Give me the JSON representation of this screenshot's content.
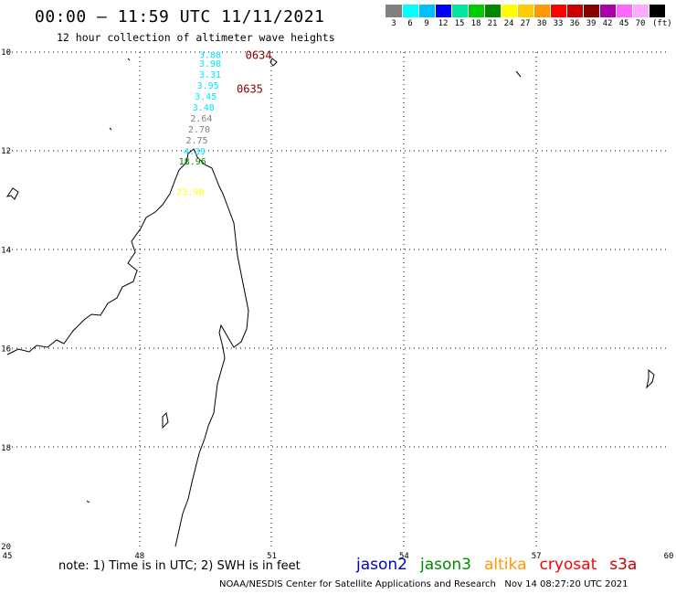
{
  "header": {
    "title": "00:00 — 11:59 UTC 11/11/2021",
    "subtitle": "12 hour collection of altimeter wave heights"
  },
  "colorbar": {
    "colors": [
      "#808080",
      "#00ffff",
      "#00bfff",
      "#0000ff",
      "#00e5a0",
      "#00cc00",
      "#008800",
      "#ffff00",
      "#ffcc00",
      "#ff9900",
      "#ff0000",
      "#cc0000",
      "#880000",
      "#aa00aa",
      "#ff66ff",
      "#ffaaff",
      "#000000"
    ],
    "ticks": [
      "3",
      "6",
      "9",
      "12",
      "15",
      "18",
      "21",
      "24",
      "27",
      "30",
      "33",
      "36",
      "39",
      "42",
      "45",
      "70"
    ],
    "unit": "(ft)"
  },
  "map": {
    "lon_ticks": [
      "45",
      "48",
      "51",
      "54",
      "57",
      "60"
    ],
    "lat_ticks": [
      "-10",
      "-12",
      "-14",
      "-16",
      "-18",
      "-20"
    ],
    "extent": {
      "lon": [
        45,
        60
      ],
      "lat": [
        -20,
        -10
      ]
    },
    "wave_labels": [
      {
        "text": "3.88",
        "lon": 49.6,
        "lat": -10.05,
        "color": "#00e5ff"
      },
      {
        "text": "3.98",
        "lon": 49.6,
        "lat": -10.22,
        "color": "#00e5ff"
      },
      {
        "text": "3.31",
        "lon": 49.6,
        "lat": -10.44,
        "color": "#00e5ff"
      },
      {
        "text": "3.95",
        "lon": 49.55,
        "lat": -10.67,
        "color": "#00e5ff"
      },
      {
        "text": "3.45",
        "lon": 49.5,
        "lat": -10.89,
        "color": "#00e5ff"
      },
      {
        "text": "3.48",
        "lon": 49.45,
        "lat": -11.11,
        "color": "#00e5ff"
      },
      {
        "text": "2.64",
        "lon": 49.4,
        "lat": -11.33,
        "color": "#808080"
      },
      {
        "text": "2.70",
        "lon": 49.35,
        "lat": -11.55,
        "color": "#808080"
      },
      {
        "text": "2.75",
        "lon": 49.3,
        "lat": -11.77,
        "color": "#808080"
      },
      {
        "text": "4.39",
        "lon": 49.25,
        "lat": -12.0,
        "color": "#00e5ff"
      },
      {
        "text": "18.96",
        "lon": 49.2,
        "lat": -12.2,
        "color": "#008800"
      },
      {
        "text": "23.90",
        "lon": 49.15,
        "lat": -12.82,
        "color": "#ffff00"
      }
    ],
    "time_labels": [
      {
        "text": "0634",
        "lon": 50.7,
        "lat": -10.05,
        "color": "#880000"
      },
      {
        "text": "0635",
        "lon": 50.5,
        "lat": -10.73,
        "color": "#880000"
      }
    ]
  },
  "footer": {
    "note": "note: 1) Time is in UTC; 2) SWH is in feet",
    "satellites": [
      {
        "name": "jason2",
        "color": "#0000cc"
      },
      {
        "name": "jason3",
        "color": "#008800"
      },
      {
        "name": "altika",
        "color": "#ff9900"
      },
      {
        "name": "cryosat",
        "color": "#ff0000"
      },
      {
        "name": "s3a",
        "color": "#cc0000"
      }
    ],
    "credit": "NOAA/NESDIS Center for Satellite Applications and Research   Nov 14 08:27:20 UTC 2021"
  }
}
